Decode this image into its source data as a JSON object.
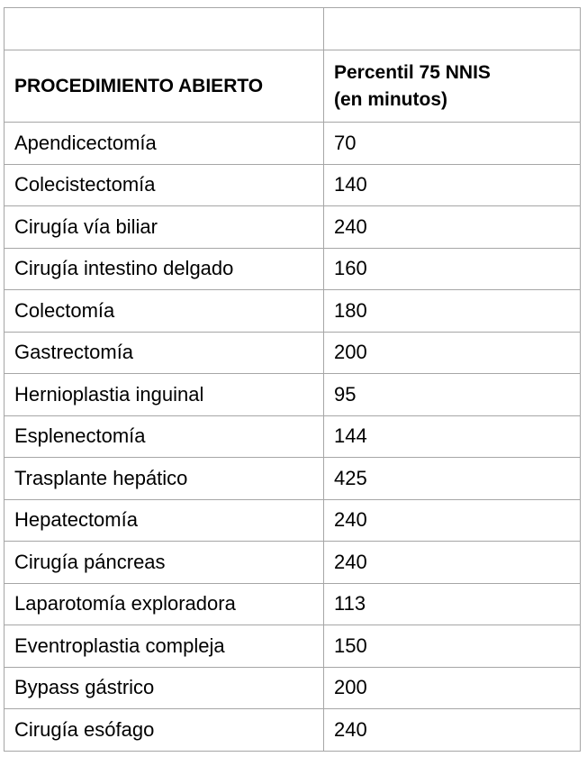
{
  "table": {
    "empty_row": [
      "",
      ""
    ],
    "header": {
      "col1": "PROCEDIMIENTO ABIERTO",
      "col2_line1": "Percentil 75 NNIS",
      "col2_line2": "(en minutos)"
    },
    "rows": [
      {
        "procedure": "Apendicectomía",
        "value": "70"
      },
      {
        "procedure": "Colecistectomía",
        "value": "140"
      },
      {
        "procedure": "Cirugía vía biliar",
        "value": "240"
      },
      {
        "procedure": "Cirugía intestino delgado",
        "value": "160"
      },
      {
        "procedure": "Colectomía",
        "value": "180"
      },
      {
        "procedure": "Gastrectomía",
        "value": "200"
      },
      {
        "procedure": "Hernioplastia inguinal",
        "value": "95"
      },
      {
        "procedure": "Esplenectomía",
        "value": "144"
      },
      {
        "procedure": "Trasplante hepático",
        "value": "425"
      },
      {
        "procedure": "Hepatectomía",
        "value": "240"
      },
      {
        "procedure": "Cirugía páncreas",
        "value": "240"
      },
      {
        "procedure": "Laparotomía exploradora",
        "value": "113"
      },
      {
        "procedure": "Eventroplastia compleja",
        "value": "150"
      },
      {
        "procedure": "Bypass gástrico",
        "value": "200"
      },
      {
        "procedure": "Cirugía esófago",
        "value": "240"
      }
    ]
  }
}
